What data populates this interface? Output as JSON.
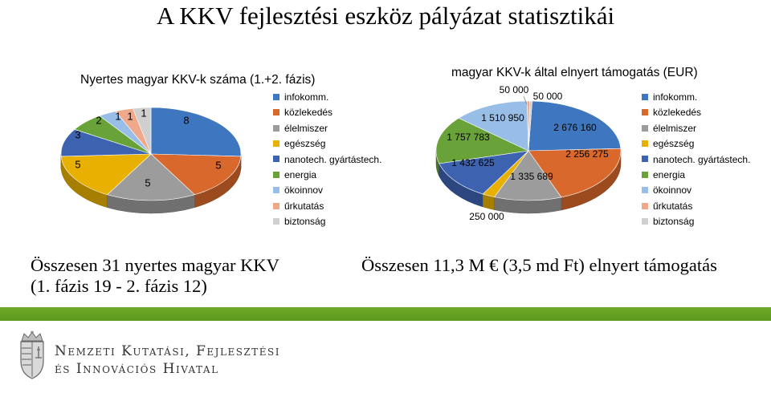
{
  "header": {
    "title": "A KKV fejlesztési eszköz pályázat statisztikái"
  },
  "chart_data": [
    {
      "type": "pie",
      "title": "Nyertes magyar KKV-k száma (1.+2. fázis)",
      "categories": [
        "infokomm.",
        "közlekedés",
        "élelmiszer",
        "egészség",
        "nanotech. gyártástech.",
        "energia",
        "ökoinnov",
        "űrkutatás",
        "biztonság"
      ],
      "values": [
        8,
        5,
        5,
        5,
        3,
        2,
        1,
        1,
        1
      ],
      "labels": [
        "8",
        "5",
        "5",
        "5",
        "3",
        "2",
        "1",
        "1",
        "1"
      ],
      "legend_position": "right"
    },
    {
      "type": "pie",
      "title": "magyar KKV-k által elnyert támogatás (EUR)",
      "categories": [
        "infokomm.",
        "közlekedés",
        "élelmiszer",
        "egészség",
        "nanotech. gyártástech.",
        "energia",
        "ökoinnov",
        "űrkutatás",
        "biztonság"
      ],
      "values": [
        2676160,
        2256275,
        1335689,
        250000,
        1432625,
        1757783,
        1510950,
        50000,
        50000
      ],
      "labels": [
        "2 676 160",
        "2 256 275",
        "1 335 689",
        "250 000",
        "1 432 625",
        "1 757 783",
        "1 510 950",
        "50 000",
        "50 000"
      ],
      "legend_position": "right"
    }
  ],
  "colors": [
    "#3e77bf",
    "#d8682b",
    "#9c9c9c",
    "#e8b000",
    "#3d63b0",
    "#68a238",
    "#98bde6",
    "#f0a88a",
    "#cfcfcf"
  ],
  "summary": {
    "left_line1": "Összesen 31 nyertes magyar KKV",
    "left_line2": "(1. fázis 19 - 2. fázis 12)",
    "right": "Összesen 11,3 M € (3,5 md Ft) elnyert támogatás"
  },
  "footer": {
    "agency_line1": "Nemzeti Kutatási, Fejlesztési",
    "agency_line2": "és Innovációs Hivatal",
    "logo_icon": "hungarian-coat-of-arms-icon"
  }
}
